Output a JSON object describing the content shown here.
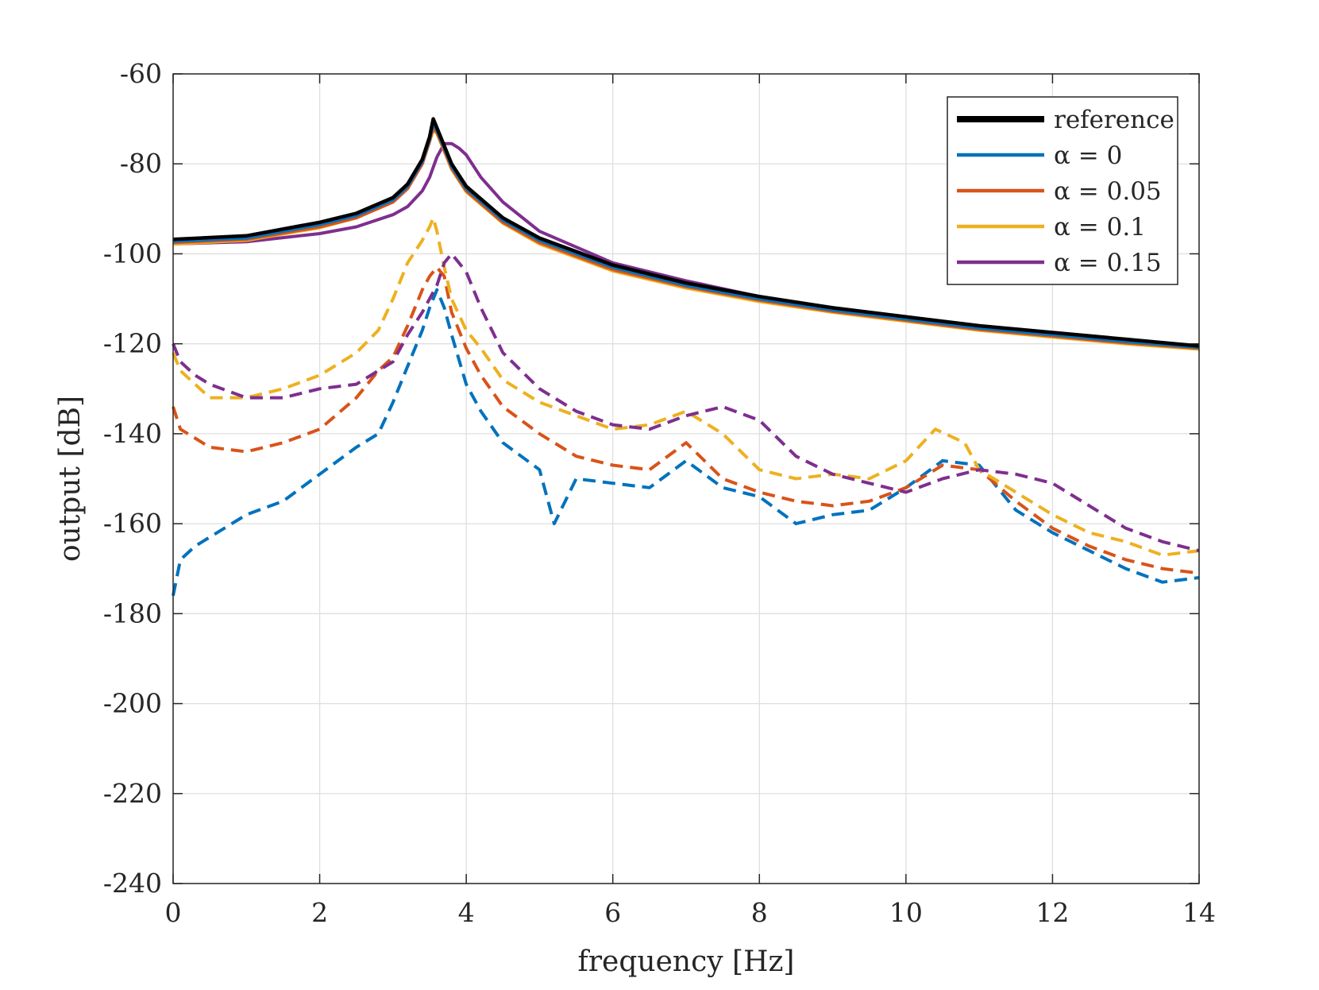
{
  "chart_data": {
    "type": "line",
    "xlabel": "frequency [Hz]",
    "ylabel": "output [dB]",
    "xlim": [
      0,
      14
    ],
    "ylim": [
      -240,
      -60
    ],
    "xticks": [
      0,
      2,
      4,
      6,
      8,
      10,
      12,
      14
    ],
    "yticks": [
      -240,
      -220,
      -200,
      -180,
      -160,
      -140,
      -120,
      -100,
      -80,
      -60
    ],
    "grid": true,
    "legend_position": "top-right",
    "colors": {
      "reference": "#000000",
      "alpha_0": "#0072bd",
      "alpha_0_05": "#d95319",
      "alpha_0_1": "#edb120",
      "alpha_0_15": "#7e2f8e",
      "grid": "#dfdfdf",
      "axis": "#262626"
    },
    "legend": [
      {
        "label": "reference",
        "color": "#000000"
      },
      {
        "label": "α = 0",
        "color": "#0072bd"
      },
      {
        "label": "α = 0.05",
        "color": "#d95319"
      },
      {
        "label": "α = 0.1",
        "color": "#edb120"
      },
      {
        "label": "α = 0.15",
        "color": "#7e2f8e"
      }
    ],
    "series": [
      {
        "name": "reference",
        "style": "solid",
        "color": "#000000",
        "x": [
          0,
          1,
          2,
          2.5,
          3,
          3.2,
          3.4,
          3.5,
          3.55,
          3.6,
          3.7,
          3.8,
          4,
          4.5,
          5,
          6,
          7,
          8,
          9,
          10,
          11,
          12,
          13,
          14
        ],
        "y": [
          -96.8,
          -96,
          -93,
          -91,
          -87.5,
          -84.5,
          -79,
          -74,
          -70,
          -72,
          -76,
          -80,
          -85,
          -92,
          -96.5,
          -102.5,
          -106.5,
          -109.5,
          -112,
          -114,
          -116,
          -117.5,
          -119,
          -120.5
        ]
      },
      {
        "name": "α = 0",
        "style": "solid",
        "color": "#0072bd",
        "x": [
          0,
          1,
          2,
          2.5,
          3,
          3.2,
          3.4,
          3.5,
          3.55,
          3.6,
          3.7,
          3.8,
          4,
          4.5,
          5,
          6,
          7,
          8,
          9,
          10,
          11,
          12,
          13,
          14
        ],
        "y": [
          -97.2,
          -96.5,
          -93.5,
          -91.5,
          -88,
          -85,
          -79.5,
          -74.5,
          -71,
          -72.5,
          -76.5,
          -80.5,
          -85.5,
          -92.5,
          -97,
          -103,
          -107,
          -110,
          -112.5,
          -114.5,
          -116.5,
          -118,
          -119.5,
          -120.8
        ]
      },
      {
        "name": "α = 0.05",
        "style": "solid",
        "color": "#d95319",
        "x": [
          0,
          1,
          2,
          2.5,
          3,
          3.2,
          3.4,
          3.5,
          3.55,
          3.6,
          3.7,
          3.8,
          4,
          4.5,
          5,
          6,
          7,
          8,
          9,
          10,
          11,
          12,
          13,
          14
        ],
        "y": [
          -97.5,
          -96.8,
          -94,
          -92,
          -88.5,
          -85.5,
          -80,
          -75,
          -72,
          -73,
          -77,
          -81,
          -86,
          -93,
          -97.5,
          -103.5,
          -107.3,
          -110.3,
          -112.8,
          -114.8,
          -116.8,
          -118.3,
          -119.8,
          -121
        ]
      },
      {
        "name": "α = 0.1",
        "style": "solid",
        "color": "#edb120",
        "x": [
          0,
          1,
          2,
          2.5,
          3,
          3.2,
          3.4,
          3.5,
          3.55,
          3.6,
          3.7,
          3.8,
          4,
          4.5,
          5,
          6,
          7,
          8,
          9,
          10,
          11,
          12,
          13,
          14
        ],
        "y": [
          -97.8,
          -97,
          -94.2,
          -92,
          -88.3,
          -85.3,
          -79.8,
          -75,
          -72.5,
          -73.2,
          -77.2,
          -81.2,
          -86.2,
          -93.2,
          -97.8,
          -103.8,
          -107.6,
          -110.6,
          -113,
          -115,
          -117,
          -118.5,
          -120,
          -121.2
        ]
      },
      {
        "name": "α = 0.15",
        "style": "solid",
        "color": "#7e2f8e",
        "x": [
          0,
          1,
          2,
          2.5,
          3,
          3.2,
          3.4,
          3.5,
          3.6,
          3.7,
          3.8,
          3.9,
          4,
          4.2,
          4.5,
          5,
          6,
          7,
          8,
          9,
          10,
          11,
          12,
          13,
          14
        ],
        "y": [
          -97.8,
          -97.3,
          -95.5,
          -94,
          -91.3,
          -89.5,
          -86,
          -83,
          -78.5,
          -75.5,
          -75.5,
          -76.5,
          -78,
          -83,
          -88.5,
          -95,
          -102,
          -106,
          -109.5,
          -112,
          -114,
          -116,
          -117.5,
          -119,
          -120.5
        ]
      },
      {
        "name": "α = 0 (dashed)",
        "style": "dashed",
        "color": "#0072bd",
        "x": [
          0,
          0.1,
          0.3,
          0.5,
          1,
          1.5,
          2,
          2.5,
          2.8,
          3,
          3.2,
          3.4,
          3.5,
          3.6,
          3.7,
          3.8,
          4,
          4.2,
          4.5,
          5,
          5.2,
          5.5,
          6,
          6.5,
          7,
          7.5,
          8,
          8.5,
          9,
          9.5,
          10,
          10.5,
          11,
          11.5,
          12,
          12.5,
          13,
          13.5,
          14
        ],
        "y": [
          -176,
          -168,
          -165,
          -163,
          -158,
          -155,
          -149,
          -143,
          -140,
          -133,
          -125,
          -117,
          -112,
          -108,
          -112,
          -118,
          -129,
          -135,
          -142,
          -148,
          -160,
          -150,
          -151,
          -152,
          -146,
          -152,
          -154,
          -160,
          -158,
          -157,
          -152,
          -146,
          -147,
          -157,
          -162,
          -166,
          -170,
          -173,
          -172
        ]
      },
      {
        "name": "α = 0.05 (dashed)",
        "style": "dashed",
        "color": "#d95319",
        "x": [
          0,
          0.1,
          0.3,
          0.5,
          1,
          1.5,
          2,
          2.5,
          2.8,
          3,
          3.2,
          3.4,
          3.5,
          3.6,
          3.7,
          3.8,
          4,
          4.2,
          4.5,
          5,
          5.5,
          6,
          6.5,
          7,
          7.5,
          8,
          8.5,
          9,
          9.5,
          10,
          10.5,
          11,
          11.5,
          12,
          12.5,
          13,
          13.5,
          14
        ],
        "y": [
          -134,
          -139,
          -141,
          -143,
          -144,
          -142,
          -139,
          -132,
          -126,
          -123,
          -116,
          -108,
          -105,
          -103,
          -105,
          -113,
          -121,
          -127,
          -134,
          -140,
          -145,
          -147,
          -148,
          -142,
          -150,
          -153,
          -155,
          -156,
          -155,
          -152,
          -147,
          -148,
          -155,
          -161,
          -165,
          -168,
          -170,
          -171
        ]
      },
      {
        "name": "α = 0.1 (dashed)",
        "style": "dashed",
        "color": "#edb120",
        "x": [
          0,
          0.1,
          0.3,
          0.5,
          1,
          1.5,
          2,
          2.5,
          2.8,
          3,
          3.2,
          3.4,
          3.5,
          3.55,
          3.6,
          3.7,
          3.8,
          4,
          4.2,
          4.5,
          5,
          5.5,
          6,
          6.5,
          7,
          7.5,
          8,
          8.5,
          9,
          9.5,
          10,
          10.4,
          10.8,
          11,
          11.5,
          12,
          12.5,
          13,
          13.5,
          14
        ],
        "y": [
          -122,
          -126,
          -129,
          -132,
          -132,
          -130,
          -127,
          -122,
          -117,
          -110,
          -102,
          -97,
          -94,
          -92,
          -95,
          -103,
          -110,
          -117,
          -121,
          -128,
          -133,
          -136,
          -139,
          -138,
          -135,
          -140,
          -148,
          -150,
          -149,
          -150,
          -146,
          -139,
          -142,
          -148,
          -153,
          -158,
          -162,
          -164,
          -167,
          -166
        ]
      },
      {
        "name": "α = 0.15 (dashed)",
        "style": "dashed",
        "color": "#7e2f8e",
        "x": [
          0,
          0.1,
          0.3,
          0.5,
          1,
          1.5,
          2,
          2.5,
          2.8,
          3,
          3.2,
          3.4,
          3.6,
          3.7,
          3.8,
          3.9,
          4,
          4.2,
          4.5,
          5,
          5.5,
          6,
          6.5,
          7,
          7.5,
          8,
          8.5,
          9,
          9.5,
          10,
          10.5,
          11,
          11.5,
          12,
          12.5,
          13,
          13.5,
          14
        ],
        "y": [
          -120,
          -124,
          -127,
          -129,
          -132,
          -132,
          -130,
          -129,
          -126,
          -124,
          -118,
          -113,
          -107,
          -102,
          -100,
          -102,
          -104,
          -112,
          -122,
          -130,
          -135,
          -138,
          -139,
          -136,
          -134,
          -137,
          -145,
          -149,
          -151,
          -153,
          -150,
          -148,
          -149,
          -151,
          -156,
          -161,
          -164,
          -166
        ]
      }
    ]
  }
}
